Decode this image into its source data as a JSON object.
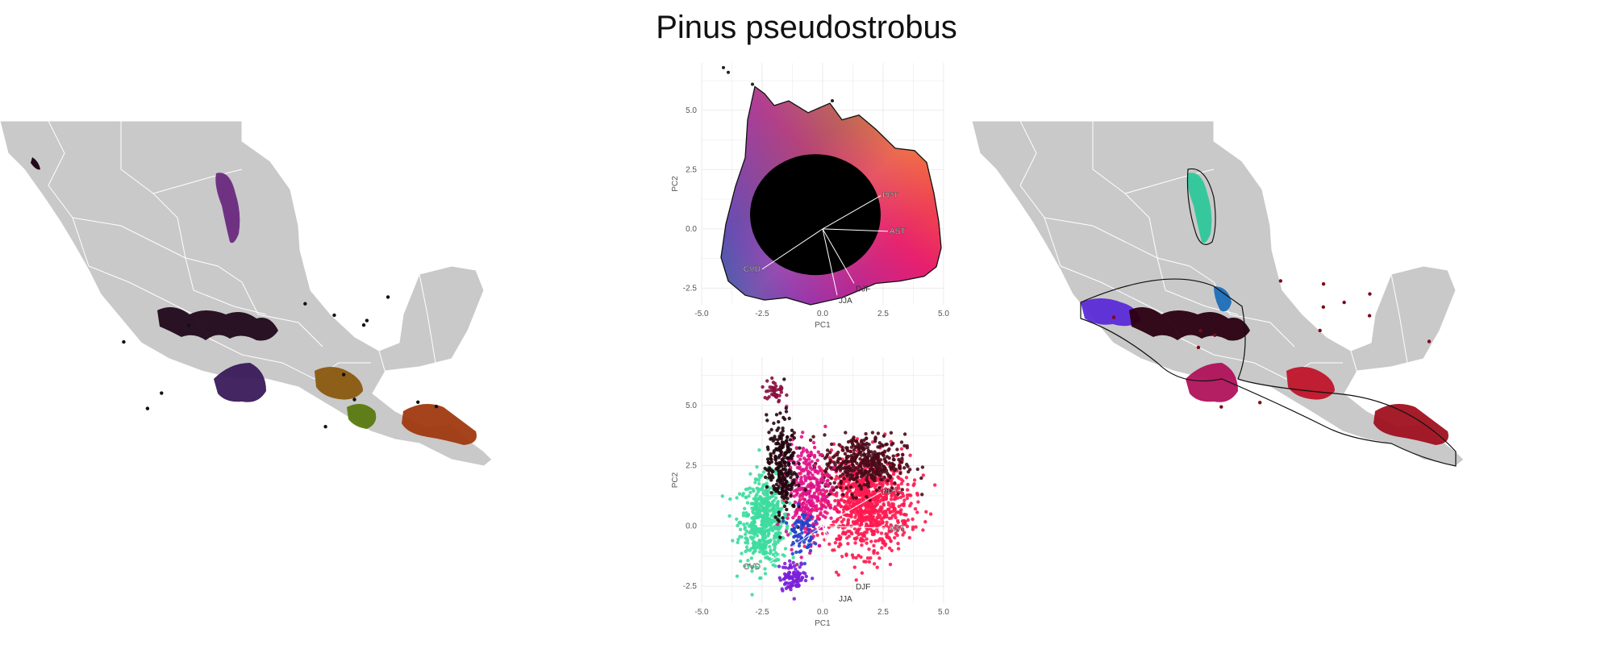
{
  "title": "Pinus pseudostrobus",
  "colors": {
    "land": "#c9c9c9",
    "border": "#ffffff",
    "grid": "#ebebeb",
    "axis_text": "#555555",
    "vector": "#ffffff",
    "hull": "#111111"
  },
  "chart_data": [
    {
      "type": "scatter",
      "panel": "pca-continuous-color",
      "xlabel": "PC1",
      "ylabel": "PC2",
      "xlim": [
        -5,
        5
      ],
      "ylim": [
        -3.2,
        7
      ],
      "xticks": [
        -5.0,
        -2.5,
        0.0,
        2.5,
        5.0
      ],
      "xtick_labels": [
        "-5.0",
        "-2.5",
        "0.0",
        "2.5",
        "5.0"
      ],
      "yticks": [
        -2.5,
        0.0,
        2.5,
        5.0
      ],
      "ytick_labels": [
        "-2.5",
        "0.0",
        "2.5",
        "5.0"
      ],
      "grid": true,
      "point_cloud_outline": [
        [
          -2.8,
          6.0
        ],
        [
          -2.4,
          5.7
        ],
        [
          -2.0,
          5.2
        ],
        [
          -1.4,
          5.4
        ],
        [
          -0.6,
          4.9
        ],
        [
          0.3,
          5.3
        ],
        [
          0.8,
          4.6
        ],
        [
          1.5,
          4.8
        ],
        [
          2.2,
          4.2
        ],
        [
          3.0,
          3.4
        ],
        [
          3.8,
          3.3
        ],
        [
          4.3,
          2.8
        ],
        [
          4.6,
          1.5
        ],
        [
          4.8,
          0.3
        ],
        [
          4.9,
          -0.8
        ],
        [
          4.7,
          -1.6
        ],
        [
          4.2,
          -2.0
        ],
        [
          3.2,
          -2.2
        ],
        [
          2.2,
          -2.3
        ],
        [
          1.5,
          -2.6
        ],
        [
          0.8,
          -2.9
        ],
        [
          -0.5,
          -3.2
        ],
        [
          -1.5,
          -2.9
        ],
        [
          -2.4,
          -3.0
        ],
        [
          -3.2,
          -2.8
        ],
        [
          -3.9,
          -2.2
        ],
        [
          -4.2,
          -1.2
        ],
        [
          -4.0,
          0.2
        ],
        [
          -3.6,
          1.8
        ],
        [
          -3.2,
          3.0
        ],
        [
          -3.1,
          4.6
        ]
      ],
      "outliers": [
        [
          -4.1,
          6.8
        ],
        [
          -3.9,
          6.6
        ],
        [
          -2.9,
          6.1
        ],
        [
          0.4,
          5.4
        ]
      ],
      "loadings": [
        {
          "label": "PPT",
          "x": 2.4,
          "y": 1.4
        },
        {
          "label": "AST",
          "x": 2.7,
          "y": -0.1
        },
        {
          "label": "CVD",
          "x": -2.5,
          "y": -1.7
        },
        {
          "label": "DJF",
          "x": 1.3,
          "y": -2.3
        },
        {
          "label": "JJA",
          "x": 0.6,
          "y": -2.8
        }
      ]
    },
    {
      "type": "scatter",
      "panel": "pca-cluster-color",
      "xlabel": "PC1",
      "ylabel": "PC2",
      "xlim": [
        -5,
        5
      ],
      "ylim": [
        -3.2,
        7
      ],
      "xticks": [
        -5.0,
        -2.5,
        0.0,
        2.5,
        5.0
      ],
      "xtick_labels": [
        "-5.0",
        "-2.5",
        "0.0",
        "2.5",
        "5.0"
      ],
      "yticks": [
        -2.5,
        0.0,
        2.5,
        5.0
      ],
      "ytick_labels": [
        "-2.5",
        "0.0",
        "2.5",
        "5.0"
      ],
      "grid": true,
      "clusters": [
        {
          "color": "#3ddc9e",
          "center": [
            -2.4,
            0.2
          ],
          "spread": [
            1.0,
            1.8
          ],
          "n": 520
        },
        {
          "color": "#ff1a50",
          "center": [
            1.8,
            0.9
          ],
          "spread": [
            1.8,
            2.0
          ],
          "n": 900
        },
        {
          "color": "#4a0a18",
          "center": [
            1.7,
            2.6
          ],
          "spread": [
            1.7,
            1.2
          ],
          "n": 420
        },
        {
          "color": "#e0138a",
          "center": [
            -0.6,
            1.4
          ],
          "spread": [
            0.9,
            2.0
          ],
          "n": 320
        },
        {
          "color": "#240510",
          "center": [
            -1.7,
            2.5
          ],
          "spread": [
            0.6,
            2.0
          ],
          "n": 260
        },
        {
          "color": "#7a1fd9",
          "center": [
            -1.2,
            -2.1
          ],
          "spread": [
            0.6,
            0.6
          ],
          "n": 90
        },
        {
          "color": "#2244cc",
          "center": [
            -0.9,
            -0.2
          ],
          "spread": [
            0.5,
            0.9
          ],
          "n": 80
        },
        {
          "color": "#8b0f3f",
          "center": [
            -2.0,
            5.6
          ],
          "spread": [
            0.4,
            0.6
          ],
          "n": 40
        }
      ],
      "loadings": [
        {
          "label": "PPT",
          "x": 2.4,
          "y": 1.4
        },
        {
          "label": "AST",
          "x": 2.7,
          "y": -0.1
        },
        {
          "label": "CVD",
          "x": -2.5,
          "y": -1.7
        },
        {
          "label": "DJF",
          "x": 1.3,
          "y": -2.3
        },
        {
          "label": "JJA",
          "x": 0.6,
          "y": -2.8
        }
      ]
    }
  ],
  "maps": {
    "left": {
      "blobs": [
        {
          "color": "#6a2a80",
          "shape": "north-strip"
        },
        {
          "color": "#1a0010",
          "shape": "west-coast"
        },
        {
          "color": "#20081a",
          "shape": "central-belt"
        },
        {
          "color": "#3a1a5a",
          "shape": "sierra-sur"
        },
        {
          "color": "#8a5a10",
          "shape": "oaxaca-north"
        },
        {
          "color": "#5a7a10",
          "shape": "isthmus"
        },
        {
          "color": "#a03a10",
          "shape": "chiapas-guatemala"
        }
      ]
    },
    "right": {
      "blobs": [
        {
          "color": "#2ec89a",
          "shape": "north-strip"
        },
        {
          "color": "#5b2bd8",
          "shape": "west-belt"
        },
        {
          "color": "#2a0010",
          "shape": "central-belt"
        },
        {
          "color": "#1f6fb8",
          "shape": "veracruz"
        },
        {
          "color": "#b0125a",
          "shape": "sierra-sur"
        },
        {
          "color": "#c0152a",
          "shape": "oaxaca-north"
        },
        {
          "color": "#a01020",
          "shape": "chiapas-guatemala"
        }
      ]
    }
  }
}
